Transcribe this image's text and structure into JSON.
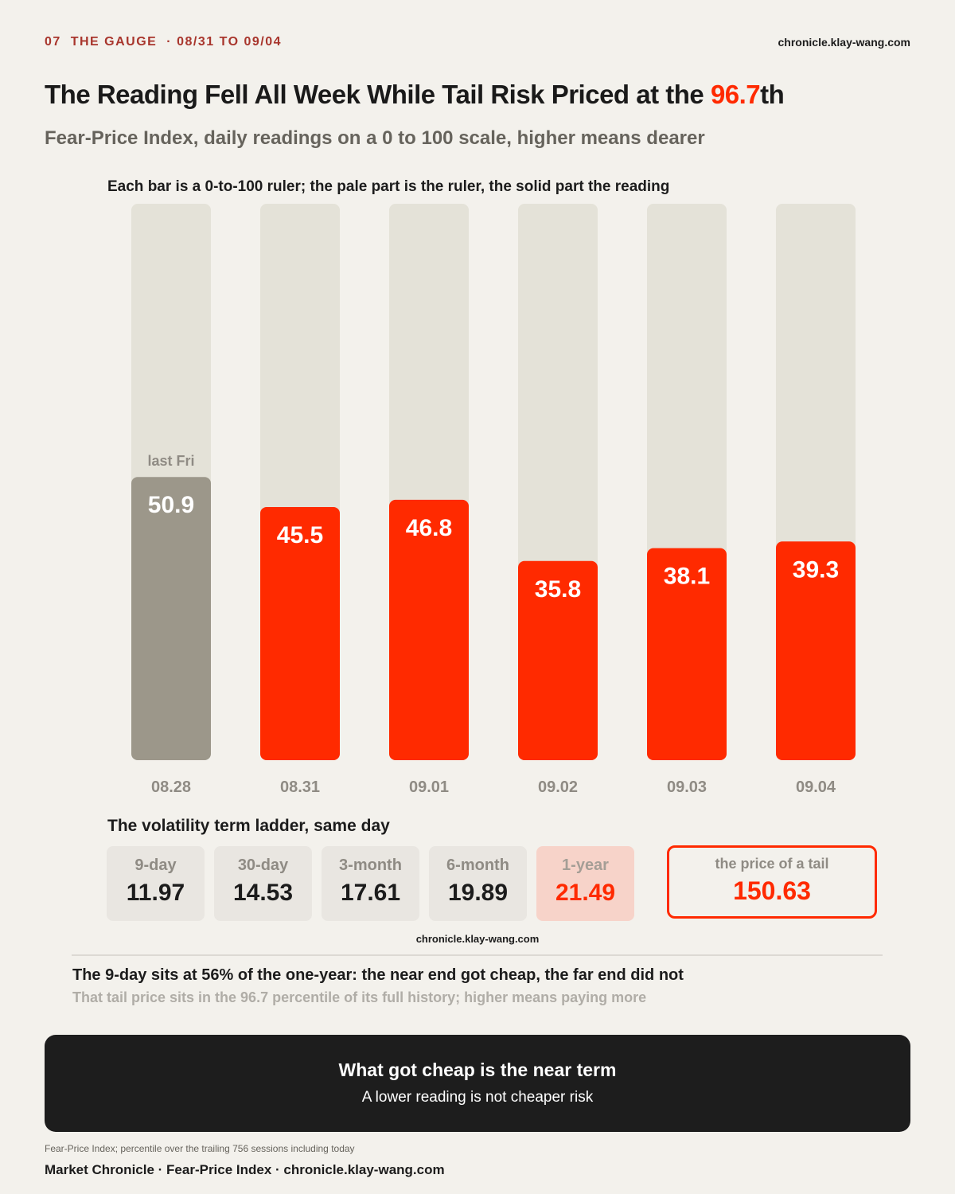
{
  "kicker": {
    "number": "07",
    "section": "THE GAUGE",
    "separator": "·",
    "range": "08/31 TO 09/04"
  },
  "site": "chronicle.klay-wang.com",
  "headline": {
    "text": "The Reading Fell All Week While Tail Risk Priced at the ",
    "highlight": "96.7",
    "suffix": "th"
  },
  "subtitle": "Fear-Price Index, daily readings on a 0 to 100 scale, higher means dearer",
  "chart_note": "Each bar is a 0-to-100 ruler; the pale part is the ruler, the solid part the reading",
  "chart_data": {
    "type": "bar",
    "categories": [
      "08.28",
      "08.31",
      "09.01",
      "09.02",
      "09.03",
      "09.04"
    ],
    "values": [
      50.9,
      45.5,
      46.8,
      35.8,
      38.1,
      39.3
    ],
    "ylim": [
      0,
      100
    ],
    "reference_label": {
      "category": "08.28",
      "text": "last Fri"
    },
    "colors": {
      "reference": "#9c978a",
      "reading": "#ff2a00",
      "ruler": "#e4e2d8",
      "label": "#ffffff",
      "axis": "#8f8b84"
    },
    "title": "",
    "xlabel": "",
    "ylabel": ""
  },
  "ladder": {
    "title": "The volatility term ladder, same day",
    "items": [
      {
        "label": "9-day",
        "value": "11.97"
      },
      {
        "label": "30-day",
        "value": "14.53"
      },
      {
        "label": "3-month",
        "value": "17.61"
      },
      {
        "label": "6-month",
        "value": "19.89"
      },
      {
        "label": "1-year",
        "value": "21.49"
      }
    ]
  },
  "tail": {
    "label": "the price of a tail",
    "value": "150.63"
  },
  "takeaway": "The 9-day sits at 56% of the one-year: the near end got cheap, the far end did not",
  "takeaway_sub": "That tail price sits in the 96.7 percentile of its full history; higher means paying more",
  "banner": {
    "title": "What got cheap is the near term",
    "subtitle": "A lower reading is not cheaper risk"
  },
  "source": "Fear-Price Index; percentile over the trailing 756 sessions including today",
  "footer": "Market Chronicle · Fear-Price Index · chronicle.klay-wang.com",
  "colors": {
    "accent": "#ff2a00",
    "kicker": "#a8352c",
    "background": "#f3f1ec",
    "banner": "#1d1d1d",
    "hot_tile": "#f7d3c9"
  }
}
